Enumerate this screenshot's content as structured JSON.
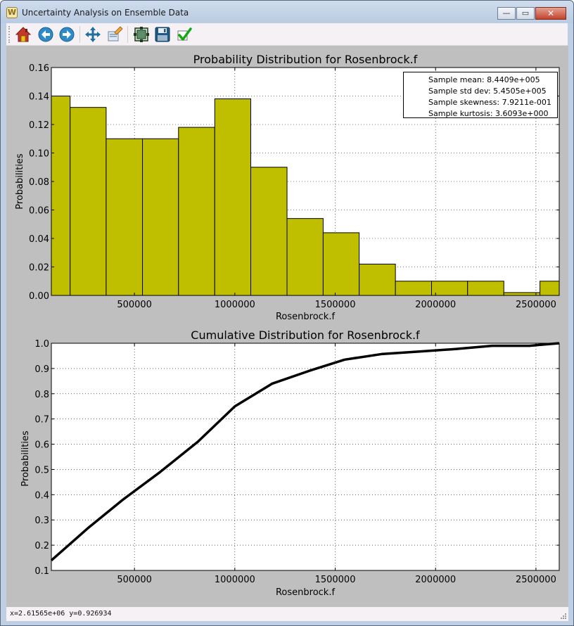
{
  "window": {
    "title": "Uncertainty Analysis on Ensemble Data",
    "minimize_glyph": "—",
    "maximize_glyph": "▭",
    "close_glyph": "✕",
    "app_icon_glyph": "W"
  },
  "toolbar": {
    "buttons": [
      {
        "name": "home-icon",
        "tooltip": "Home"
      },
      {
        "name": "back-arrow-icon",
        "tooltip": "Back"
      },
      {
        "name": "forward-arrow-icon",
        "tooltip": "Forward"
      },
      {
        "name": "pan-move-icon",
        "tooltip": "Pan"
      },
      {
        "name": "zoom-edit-icon",
        "tooltip": "Zoom"
      },
      {
        "name": "configure-subplots-icon",
        "tooltip": "Subplots"
      },
      {
        "name": "save-floppy-icon",
        "tooltip": "Save"
      },
      {
        "name": "checkmark-icon",
        "tooltip": "Edit"
      }
    ]
  },
  "status": {
    "text": "x=2.61565e+06  y=0.926934"
  },
  "legend": {
    "lines": [
      "Sample mean: 8.4409e+005",
      "Sample std dev: 5.4505e+005",
      "Sample skewness: 7.9211e-001",
      "Sample kurtosis: 3.6093e+000"
    ]
  },
  "colors": {
    "bar_fill": "#bfbf00",
    "plot_bg": "#bfbfbf",
    "axes_bg": "#ffffff",
    "line": "#000000"
  },
  "chart_data": [
    {
      "type": "bar",
      "title": "Probability Distribution for Rosenbrock.f",
      "xlabel": "Rosenbrock.f",
      "ylabel": "Probabilities",
      "xlim": [
        86000,
        2616000
      ],
      "ylim": [
        0,
        0.16
      ],
      "xticks": [
        500000,
        1000000,
        1500000,
        2000000,
        2500000
      ],
      "xtick_labels": [
        "500000",
        "1000000",
        "1500000",
        "2000000",
        "2500000"
      ],
      "yticks": [
        0.0,
        0.02,
        0.04,
        0.06,
        0.08,
        0.1,
        0.12,
        0.14,
        0.16
      ],
      "ytick_labels": [
        "0.00",
        "0.02",
        "0.04",
        "0.06",
        "0.08",
        "0.10",
        "0.12",
        "0.14",
        "0.16"
      ],
      "grid": true,
      "legend_placement": "top-right",
      "bin_edges": [
        -93000,
        179500,
        359000,
        540000,
        719500,
        900000,
        1079500,
        1260000,
        1440000,
        1619500,
        1800000,
        1980000,
        2159500,
        2340000,
        2520000,
        2699500
      ],
      "values": [
        0.14,
        0.132,
        0.11,
        0.11,
        0.118,
        0.138,
        0.09,
        0.054,
        0.044,
        0.022,
        0.01,
        0.01,
        0.01,
        0.002,
        0.01
      ]
    },
    {
      "type": "line",
      "title": "Cumulative Distribution for Rosenbrock.f",
      "xlabel": "Rosenbrock.f",
      "ylabel": "Probabilities",
      "xlim": [
        86000,
        2616000
      ],
      "ylim": [
        0.1,
        1.0
      ],
      "xticks": [
        500000,
        1000000,
        1500000,
        2000000,
        2500000
      ],
      "xtick_labels": [
        "500000",
        "1000000",
        "1500000",
        "2000000",
        "2500000"
      ],
      "yticks": [
        0.1,
        0.2,
        0.3,
        0.4,
        0.5,
        0.6,
        0.7,
        0.8,
        0.9,
        1.0
      ],
      "ytick_labels": [
        "0.1",
        "0.2",
        "0.3",
        "0.4",
        "0.5",
        "0.6",
        "0.7",
        "0.8",
        "0.9",
        "1.0"
      ],
      "grid": true,
      "x": [
        86000,
        272000,
        442000,
        628000,
        816000,
        1000000,
        1186000,
        1368000,
        1547000,
        1730000,
        1914000,
        2098000,
        2282000,
        2467000,
        2616000
      ],
      "y": [
        0.14,
        0.27,
        0.38,
        0.49,
        0.61,
        0.75,
        0.84,
        0.89,
        0.935,
        0.957,
        0.967,
        0.977,
        0.99,
        0.99,
        1.0
      ]
    }
  ]
}
